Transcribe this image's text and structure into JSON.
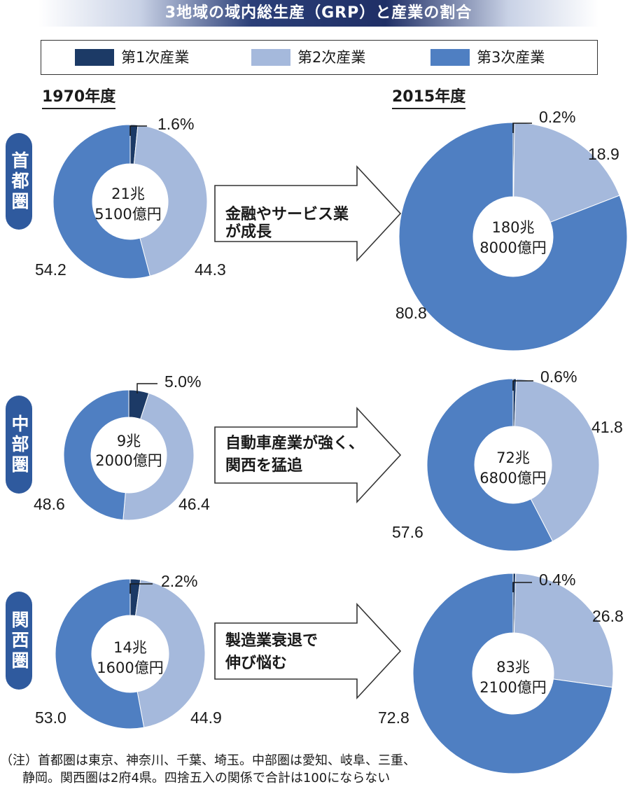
{
  "title": "3地域の域内総生産（GRP）と産業の割合",
  "legend": [
    {
      "label": "第1次産業",
      "color": "#1c3a66"
    },
    {
      "label": "第2次産業",
      "color": "#a5b9dc"
    },
    {
      "label": "第3次産業",
      "color": "#4f7fc2"
    }
  ],
  "year_labels": {
    "left": "1970年度",
    "right": "2015年度"
  },
  "regions": [
    {
      "name": "首都圏",
      "arrow_line1": "金融やサービス業",
      "arrow_line2": "が成長"
    },
    {
      "name": "中部圏",
      "arrow_line1": "自動車産業が強く、",
      "arrow_line2": "関西を猛追"
    },
    {
      "name": "関西圏",
      "arrow_line1": "製造業衰退で",
      "arrow_line2": "伸び悩む"
    }
  ],
  "chart_data": [
    {
      "type": "pie",
      "style": "donut",
      "region": "首都圏",
      "year": "1970年度",
      "center_line1": "21兆",
      "center_line2": "5100億円",
      "categories": [
        "第1次産業",
        "第2次産業",
        "第3次産業"
      ],
      "values": [
        1.6,
        44.3,
        54.2
      ],
      "labels": [
        "1.6%",
        "44.3",
        "54.2"
      ]
    },
    {
      "type": "pie",
      "style": "donut",
      "region": "首都圏",
      "year": "2015年度",
      "center_line1": "180兆",
      "center_line2": "8000億円",
      "categories": [
        "第1次産業",
        "第2次産業",
        "第3次産業"
      ],
      "values": [
        0.2,
        18.9,
        80.8
      ],
      "labels": [
        "0.2%",
        "18.9",
        "80.8"
      ]
    },
    {
      "type": "pie",
      "style": "donut",
      "region": "中部圏",
      "year": "1970年度",
      "center_line1": "9兆",
      "center_line2": "2000億円",
      "categories": [
        "第1次産業",
        "第2次産業",
        "第3次産業"
      ],
      "values": [
        5.0,
        46.4,
        48.6
      ],
      "labels": [
        "5.0%",
        "46.4",
        "48.6"
      ]
    },
    {
      "type": "pie",
      "style": "donut",
      "region": "中部圏",
      "year": "2015年度",
      "center_line1": "72兆",
      "center_line2": "6800億円",
      "categories": [
        "第1次産業",
        "第2次産業",
        "第3次産業"
      ],
      "values": [
        0.6,
        41.8,
        57.6
      ],
      "labels": [
        "0.6%",
        "41.8",
        "57.6"
      ]
    },
    {
      "type": "pie",
      "style": "donut",
      "region": "関西圏",
      "year": "1970年度",
      "center_line1": "14兆",
      "center_line2": "1600億円",
      "categories": [
        "第1次産業",
        "第2次産業",
        "第3次産業"
      ],
      "values": [
        2.2,
        44.9,
        53.0
      ],
      "labels": [
        "2.2%",
        "44.9",
        "53.0"
      ]
    },
    {
      "type": "pie",
      "style": "donut",
      "region": "関西圏",
      "year": "2015年度",
      "center_line1": "83兆",
      "center_line2": "2100億円",
      "categories": [
        "第1次産業",
        "第2次産業",
        "第3次産業"
      ],
      "values": [
        0.4,
        26.8,
        72.8
      ],
      "labels": [
        "0.4%",
        "26.8",
        "72.8"
      ]
    }
  ],
  "note_line1": "（注）首都圏は東京、神奈川、千葉、埼玉。中部圏は愛知、岐阜、三重、",
  "note_line2": "静岡。関西圏は2府4県。四捨五入の関係で合計は100にならない"
}
